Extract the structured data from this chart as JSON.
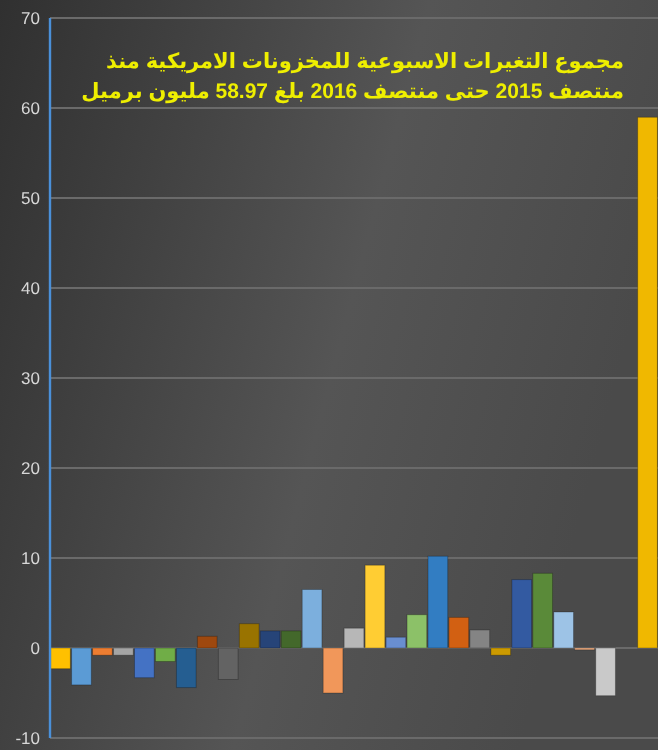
{
  "chart_data": {
    "type": "bar",
    "title": "مجموع التغيرات  الاسبوعية للمخزونات الامريكية منذ\nمنتصف 2015 حتى منتصف 2016 بلغ 58.97 مليون برميل",
    "categories": [
      null,
      null,
      null,
      null,
      null,
      null,
      null,
      null,
      null,
      null,
      null,
      null,
      null,
      null,
      null,
      null,
      null,
      null,
      null,
      null,
      null,
      null,
      null,
      null,
      null,
      null,
      null,
      null,
      null
    ],
    "values": [
      -2.3,
      -4.1,
      -0.8,
      -0.8,
      -3.3,
      -1.5,
      -4.4,
      1.3,
      -3.5,
      2.7,
      1.9,
      1.9,
      6.5,
      -5.0,
      2.2,
      9.2,
      1.2,
      3.7,
      10.2,
      3.4,
      2.0,
      -0.8,
      7.6,
      8.3,
      4.0,
      -0.2,
      -5.3,
      null,
      58.97
    ],
    "colors": [
      "#ffc000",
      "#5b9bd5",
      "#ed7d31",
      "#a5a5a5",
      "#4472c4",
      "#70ad47",
      "#255e91",
      "#9e480e",
      "#636363",
      "#997300",
      "#264478",
      "#43682b",
      "#7cafdd",
      "#f1975a",
      "#b7b7b7",
      "#ffcd33",
      "#698ed0",
      "#8cc168",
      "#327dc2",
      "#d26012",
      "#848484",
      "#cc9a00",
      "#335aa1",
      "#5a8a39",
      "#9dc3e6",
      "#f4b183",
      "#c9c9c9",
      null,
      "#f0b800"
    ],
    "ylim": [
      -10,
      70
    ],
    "yticks": [
      -10,
      0,
      10,
      20,
      30,
      40,
      50,
      60,
      70
    ],
    "grid": "y",
    "tick_labels": "y"
  }
}
